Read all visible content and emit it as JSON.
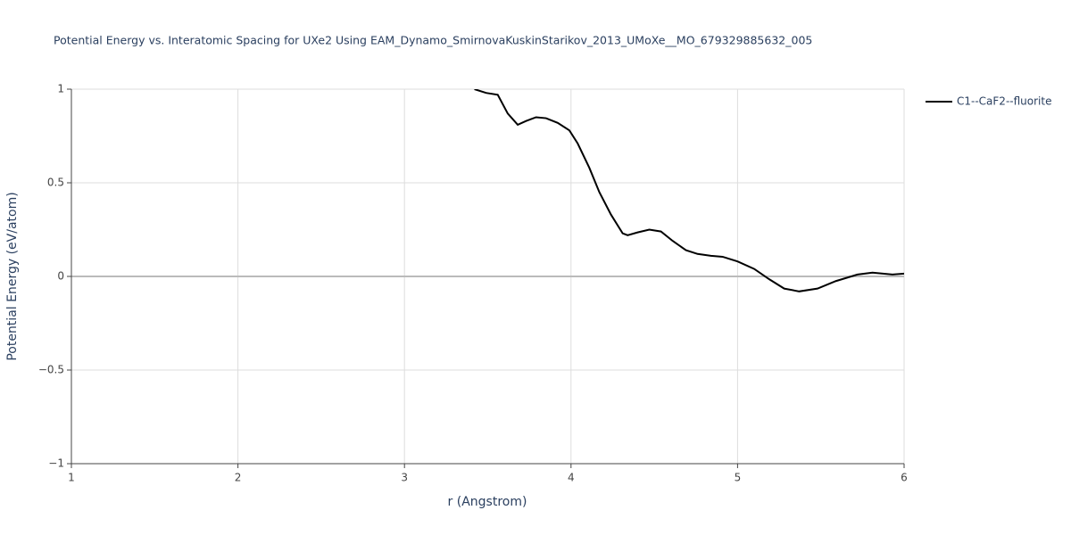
{
  "chart_data": {
    "type": "line",
    "title": "Potential Energy vs. Interatomic Spacing for UXe2 Using EAM_Dynamo_SmirnovaKuskinStarikov_2013_UMoXe__MO_679329885632_005",
    "x_label": "r (Angstrom)",
    "y_label": "Potential Energy (eV/atom)",
    "x": [
      3.42,
      3.49,
      3.56,
      3.62,
      3.68,
      3.73,
      3.79,
      3.85,
      3.92,
      3.99,
      4.04,
      4.11,
      4.17,
      4.24,
      4.31,
      4.34,
      4.4,
      4.47,
      4.54,
      4.61,
      4.69,
      4.76,
      4.84,
      4.91,
      5.0,
      5.1,
      5.19,
      5.28,
      5.37,
      5.48,
      5.59,
      5.72,
      5.81,
      5.93,
      6.0
    ],
    "series": [
      {
        "name": "C1--CaF2--fluorite",
        "color": "#000000",
        "values": [
          1.0,
          0.98,
          0.97,
          0.87,
          0.81,
          0.83,
          0.85,
          0.845,
          0.82,
          0.78,
          0.71,
          0.58,
          0.45,
          0.33,
          0.23,
          0.22,
          0.235,
          0.25,
          0.24,
          0.19,
          0.14,
          0.12,
          0.11,
          0.105,
          0.08,
          0.04,
          -0.015,
          -0.065,
          -0.08,
          -0.065,
          -0.025,
          0.01,
          0.02,
          0.01,
          0.015
        ]
      }
    ],
    "xlim": [
      1,
      6
    ],
    "xticks": [
      1,
      2,
      3,
      4,
      5,
      6
    ],
    "ylim": [
      -1,
      1
    ],
    "yticks": [
      {
        "value": -1,
        "label": "−1"
      },
      {
        "value": -0.5,
        "label": "−0.5"
      },
      0,
      0.5,
      1
    ],
    "grid": true,
    "legend": "right"
  }
}
